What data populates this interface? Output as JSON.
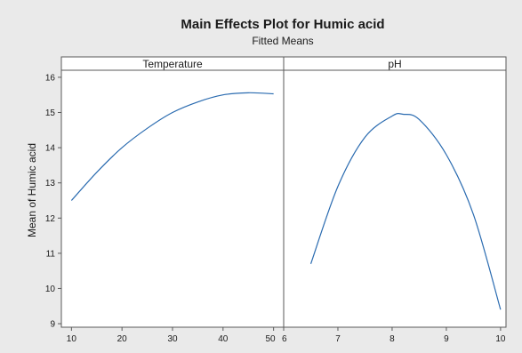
{
  "chart_data": {
    "type": "line",
    "title": "Main Effects Plot for Humic acid",
    "subtitle": "Fitted Means",
    "ylabel": "Mean of Humic acid",
    "ylim": [
      8.9,
      16.2
    ],
    "yticks": [
      9,
      10,
      11,
      12,
      13,
      14,
      15,
      16
    ],
    "grid": false,
    "line_color": "#2a6bb0",
    "panels": [
      {
        "label": "Temperature",
        "xlim": [
          8,
          52
        ],
        "xticks": [
          10,
          20,
          30,
          40,
          50
        ],
        "series": [
          {
            "x": [
              10,
              15,
              20,
              25,
              30,
              35,
              40,
              45,
              50
            ],
            "values": [
              12.5,
              13.3,
              14.0,
              14.55,
              15.0,
              15.3,
              15.5,
              15.56,
              15.53
            ]
          }
        ]
      },
      {
        "label": "pH",
        "xlim": [
          6.0,
          10.1
        ],
        "xticks": [
          6,
          7,
          8,
          9,
          10
        ],
        "series": [
          {
            "x": [
              6.5,
              7.0,
              7.5,
              8.0,
              8.2,
              8.5,
              9.0,
              9.5,
              10.0
            ],
            "values": [
              10.7,
              12.9,
              14.3,
              14.9,
              14.95,
              14.8,
              13.8,
              12.1,
              9.4
            ]
          }
        ]
      }
    ]
  }
}
